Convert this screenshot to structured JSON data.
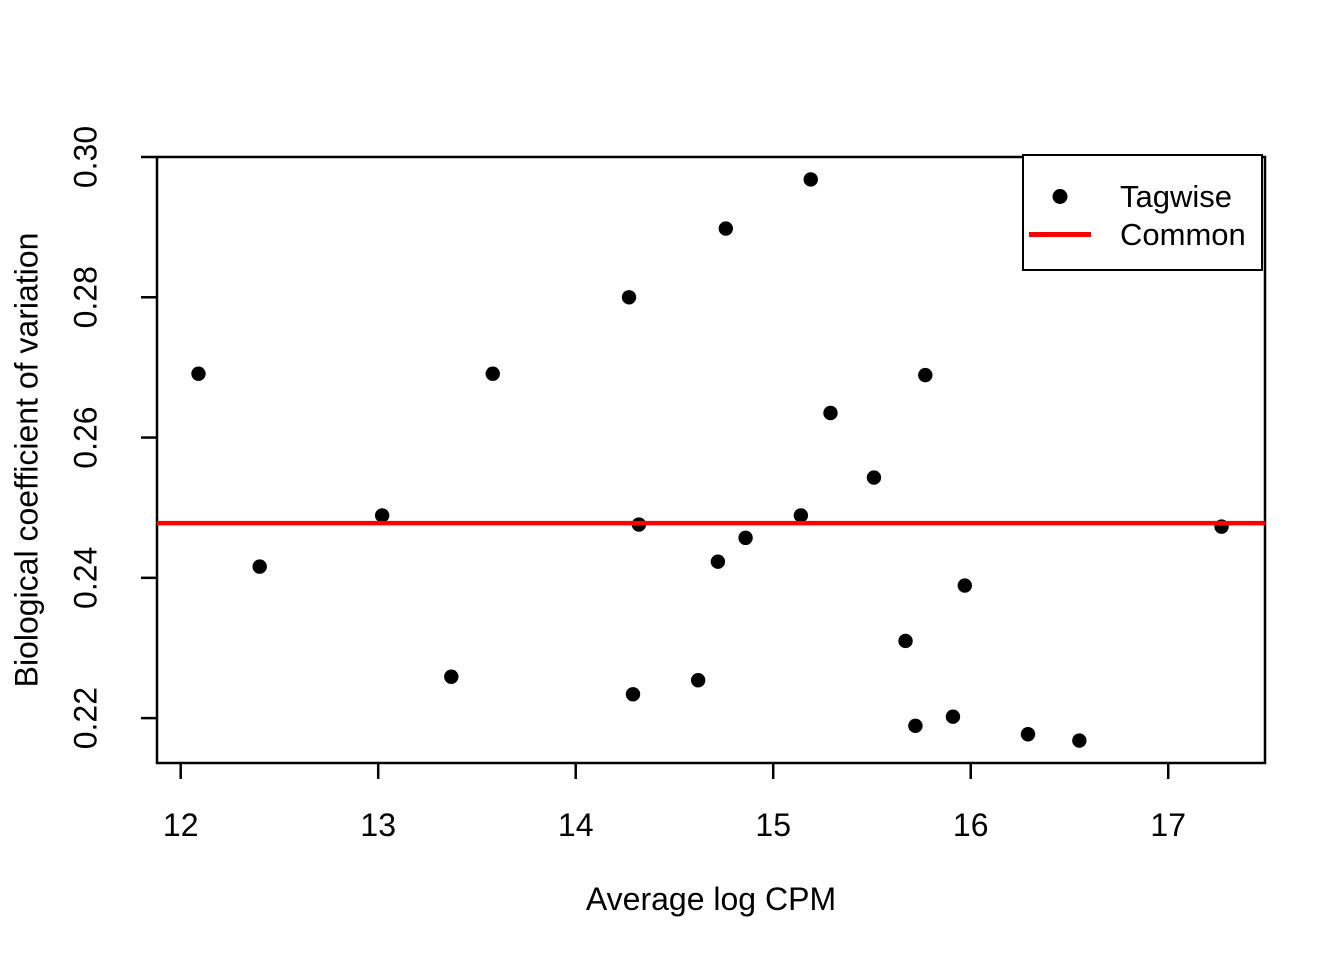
{
  "chart_data": {
    "type": "scatter",
    "title": "",
    "xlabel": "Average log CPM",
    "ylabel": "Biological coefficient of variation",
    "xlim": [
      11.88,
      17.49
    ],
    "ylim": [
      0.2136,
      0.3
    ],
    "x_ticks": [
      12,
      13,
      14,
      15,
      16,
      17
    ],
    "x_tick_labels": [
      "12",
      "13",
      "14",
      "15",
      "16",
      "17"
    ],
    "y_ticks": [
      0.22,
      0.24,
      0.26,
      0.28,
      0.3
    ],
    "y_tick_labels": [
      "0.22",
      "0.24",
      "0.26",
      "0.28",
      "0.30"
    ],
    "grid": false,
    "colors": {
      "points": "#000000",
      "common_line": "#ff0000",
      "axis": "#000000",
      "background": "#ffffff"
    },
    "series": [
      {
        "name": "Tagwise",
        "type": "points",
        "color": "#000000",
        "points": [
          [
            12.09,
            0.2691
          ],
          [
            12.4,
            0.2416
          ],
          [
            13.02,
            0.2489
          ],
          [
            13.37,
            0.2259
          ],
          [
            13.58,
            0.2691
          ],
          [
            14.27,
            0.28
          ],
          [
            14.29,
            0.2234
          ],
          [
            14.32,
            0.2476
          ],
          [
            14.62,
            0.2254
          ],
          [
            14.72,
            0.2423
          ],
          [
            14.76,
            0.2898
          ],
          [
            14.86,
            0.2457
          ],
          [
            15.14,
            0.2489
          ],
          [
            15.19,
            0.2968
          ],
          [
            15.29,
            0.2635
          ],
          [
            15.51,
            0.2543
          ],
          [
            15.67,
            0.231
          ],
          [
            15.72,
            0.2189
          ],
          [
            15.77,
            0.2689
          ],
          [
            15.91,
            0.2202
          ],
          [
            15.97,
            0.2389
          ],
          [
            16.29,
            0.2177
          ],
          [
            16.55,
            0.2168
          ],
          [
            17.27,
            0.2473
          ]
        ]
      },
      {
        "name": "Common",
        "type": "hline",
        "color": "#ff0000",
        "y": 0.2478
      }
    ],
    "legend": {
      "position": "top-right",
      "entries": [
        {
          "label": "Tagwise",
          "marker": "dot",
          "color": "#000000"
        },
        {
          "label": "Common",
          "marker": "line",
          "color": "#ff0000"
        }
      ]
    }
  }
}
